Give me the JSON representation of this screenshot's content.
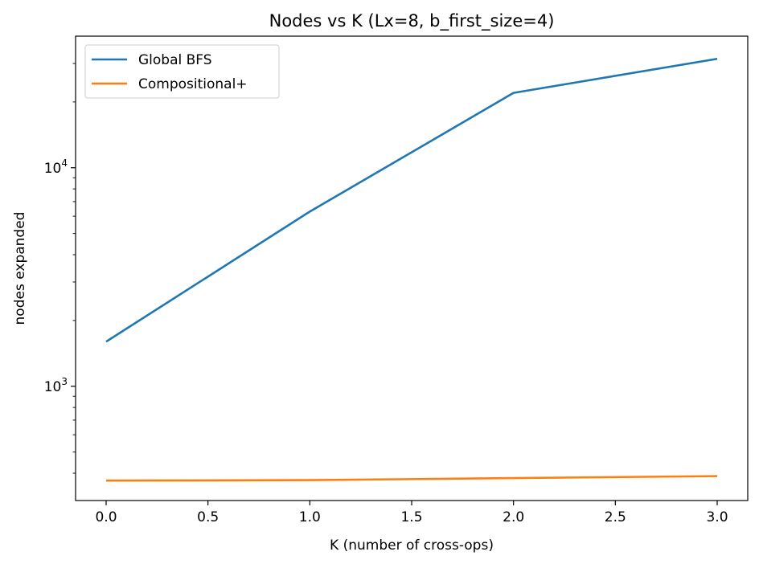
{
  "chart_data": {
    "type": "line",
    "title": "Nodes vs K (Lx=8, b_first_size=4)",
    "xlabel": "K (number of cross-ops)",
    "ylabel": "nodes expanded",
    "x": [
      0.0,
      1.0,
      2.0,
      3.0
    ],
    "xlim": [
      -0.15,
      3.15
    ],
    "ylim": [
      300,
      40000
    ],
    "yscale": "log",
    "xticks": [
      "0.0",
      "0.5",
      "1.0",
      "1.5",
      "2.0",
      "2.5",
      "3.0"
    ],
    "yticks": [
      {
        "value": 1000,
        "base": "10",
        "exp": "3"
      },
      {
        "value": 10000,
        "base": "10",
        "exp": "4"
      }
    ],
    "grid": false,
    "legend_position": "top-left",
    "series": [
      {
        "name": "Global BFS",
        "color": "#1f77b4",
        "values": [
          1600,
          6300,
          22000,
          31500
        ]
      },
      {
        "name": "Compositional+",
        "color": "#ff7f0e",
        "values": [
          370,
          372,
          380,
          388
        ]
      }
    ]
  }
}
